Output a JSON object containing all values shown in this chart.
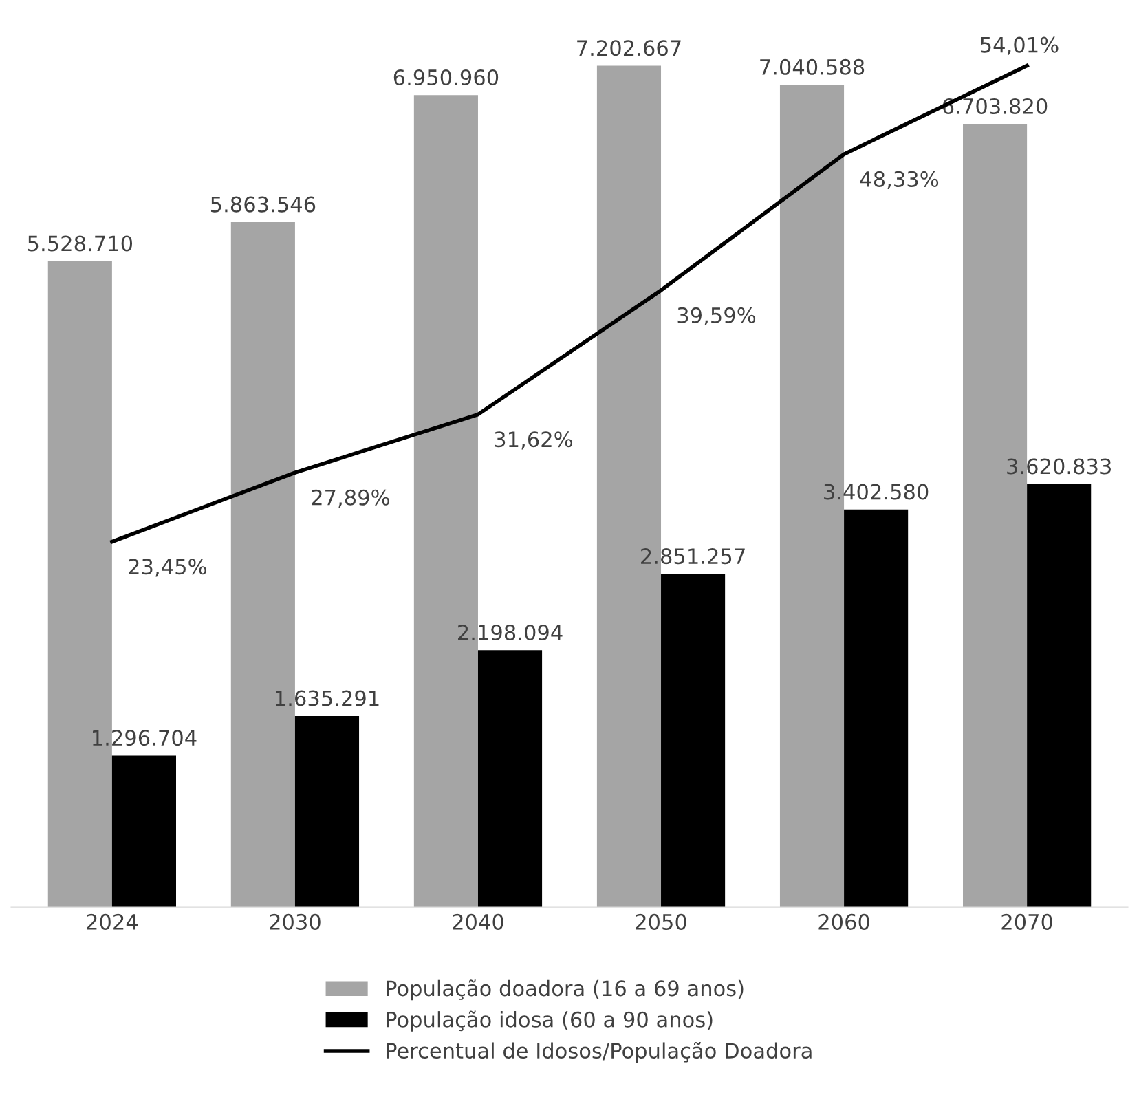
{
  "chart_data": {
    "type": "bar",
    "categories": [
      "2024",
      "2030",
      "2040",
      "2050",
      "2060",
      "2070"
    ],
    "series": [
      {
        "name": "População doadora (16 a 69 anos)",
        "color": "#a5a5a5",
        "values": [
          5528710,
          5863546,
          6950960,
          7202667,
          7040588,
          6703820
        ],
        "value_labels": [
          "5.528.710",
          "5.863.546",
          "6.950.960",
          "7.202.667",
          "7.040.588",
          "6.703.820"
        ]
      },
      {
        "name": "População idosa (60 a 90 anos)",
        "color": "#000000",
        "values": [
          1296704,
          1635291,
          2198094,
          2851257,
          3402580,
          3620833
        ],
        "value_labels": [
          "1.296.704",
          "1.635.291",
          "2.198.094",
          "2.851.257",
          "3.402.580",
          "3.620.833"
        ]
      },
      {
        "name": "Percentual de Idosos/População Doadora",
        "color": "#000000",
        "type": "line",
        "axis": "y2",
        "values": [
          23.45,
          27.89,
          31.62,
          39.59,
          48.33,
          54.01
        ],
        "value_labels": [
          "23,45%",
          "27,89%",
          "31,62%",
          "39,59%",
          "48,33%",
          "54,01%"
        ]
      }
    ],
    "legend": "bottom",
    "grid": false,
    "tick_labels": "x",
    "line_style": "solid",
    "marker": "none"
  }
}
